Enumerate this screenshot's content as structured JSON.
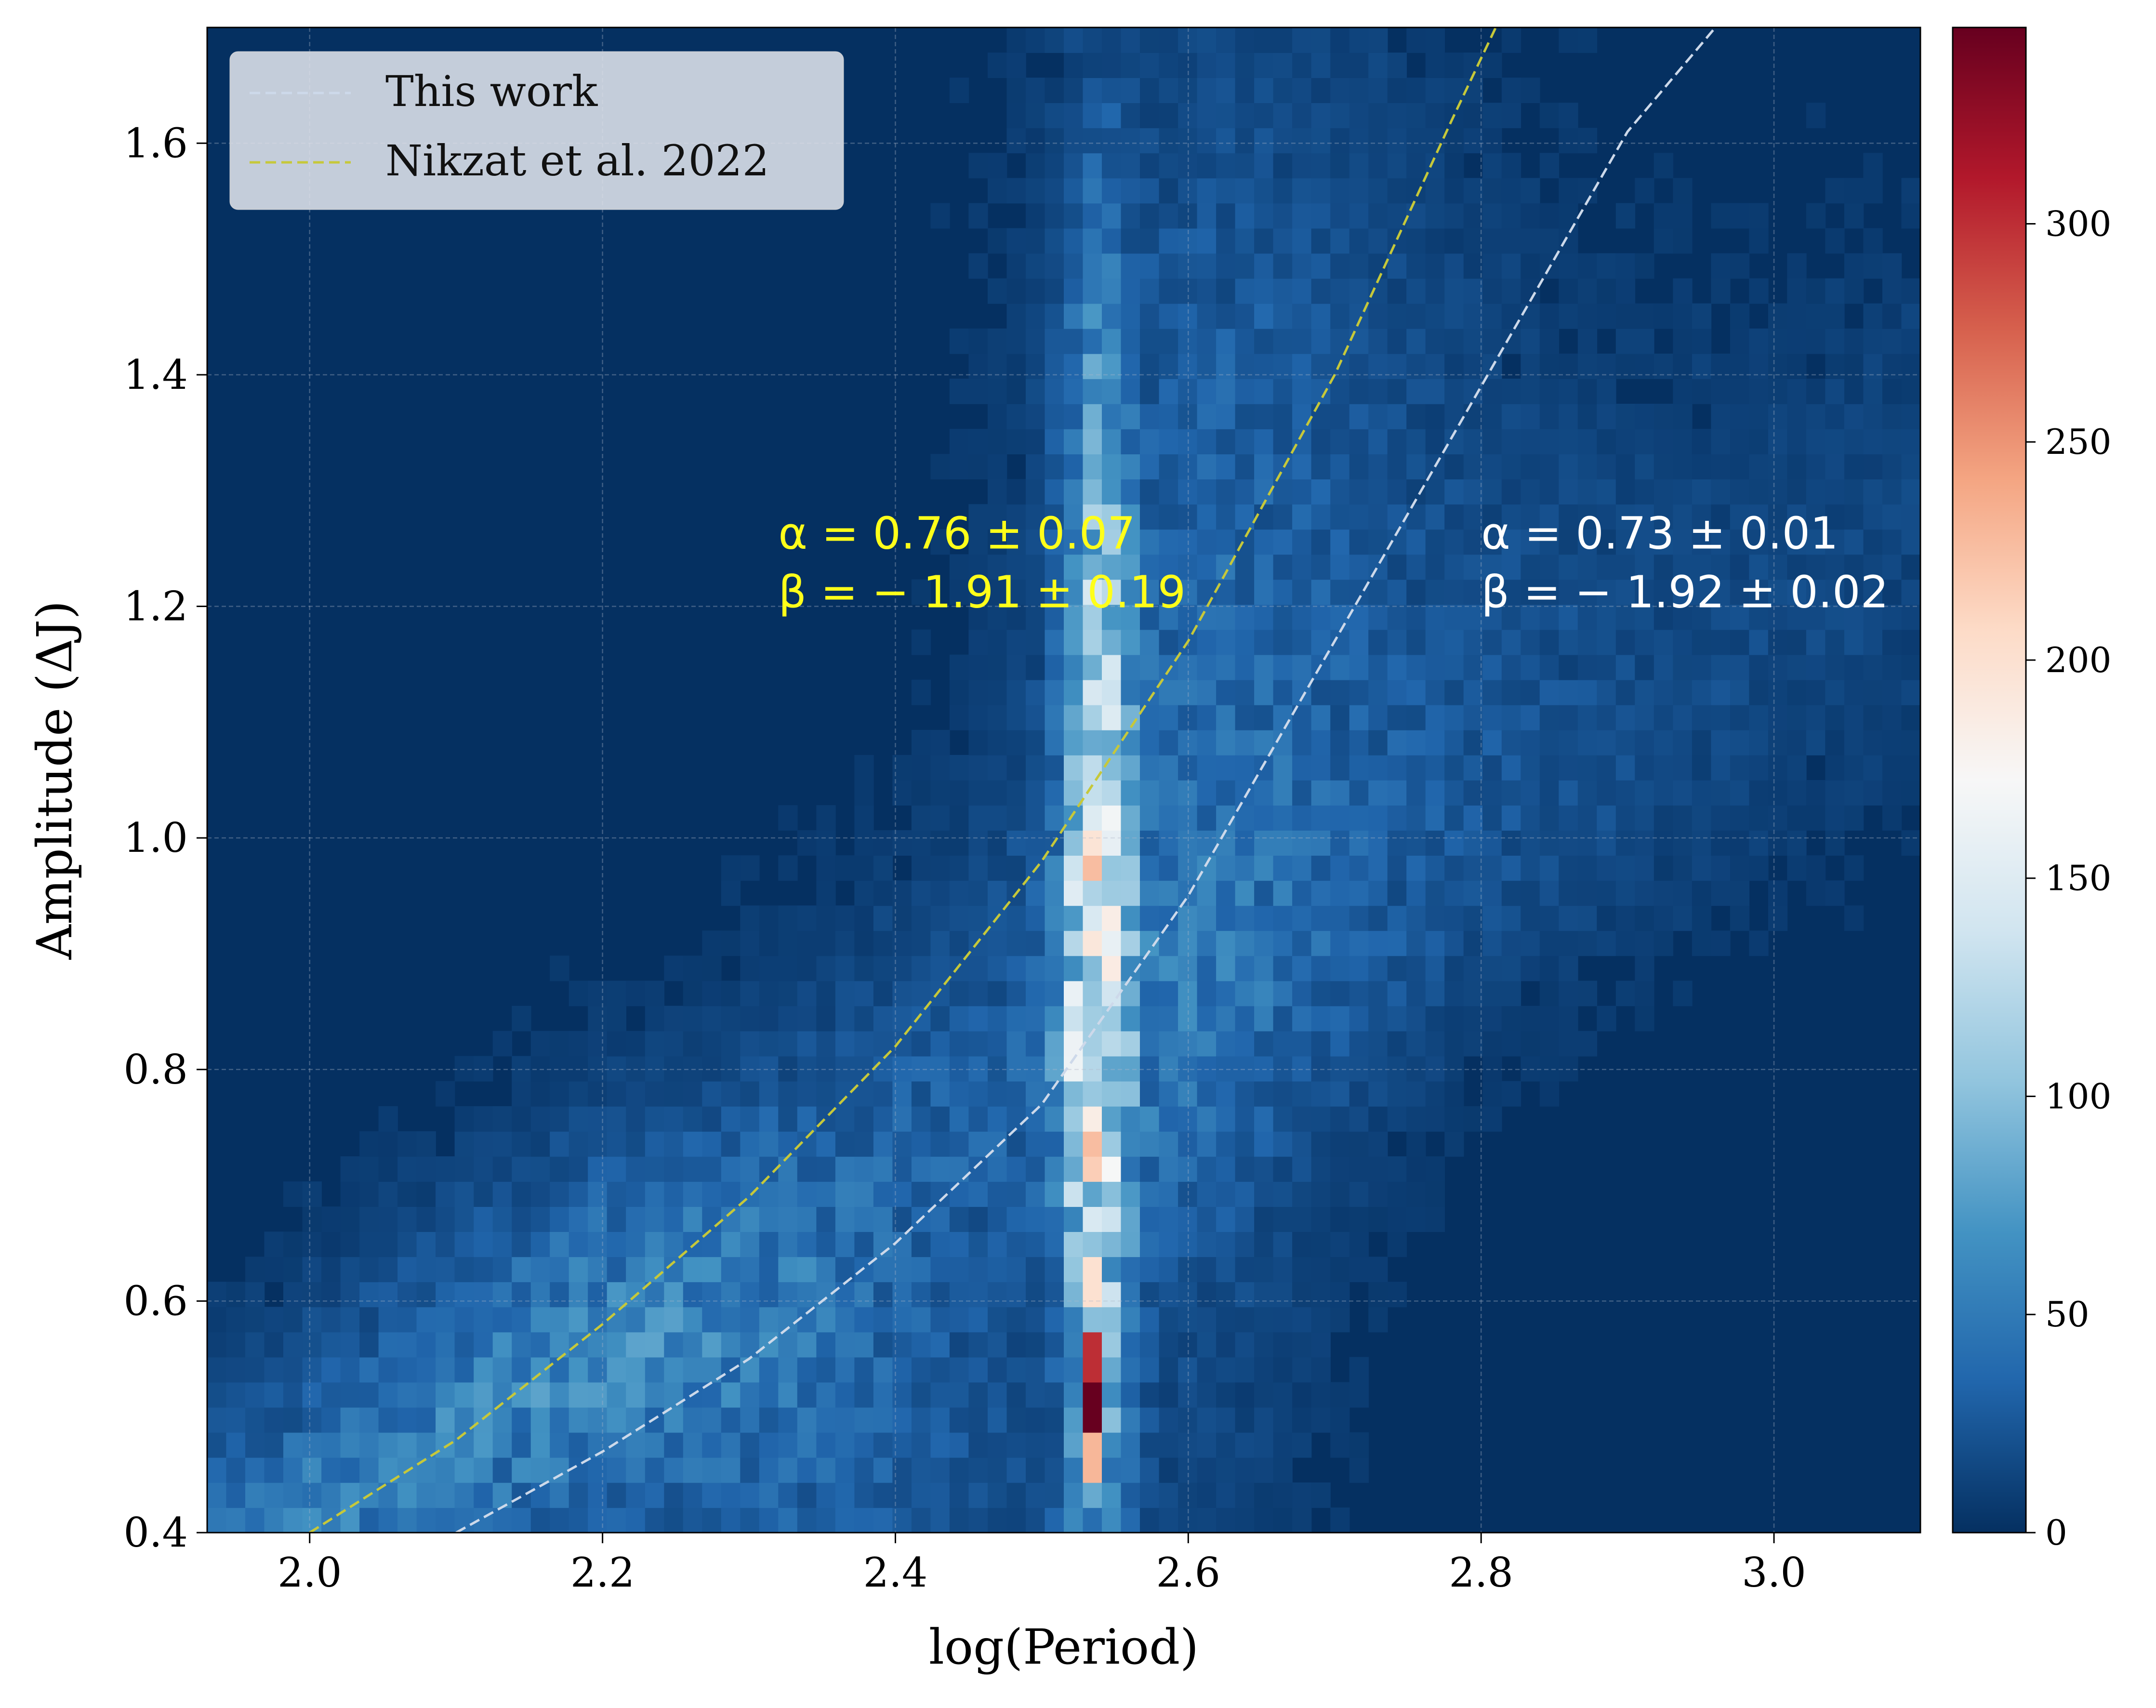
{
  "chart_data": {
    "type": "heatmap",
    "xlabel": "log(Period)",
    "ylabel": "Amplitude (ΔJ)",
    "xlim": [
      1.93,
      3.1
    ],
    "ylim": [
      0.4,
      1.7
    ],
    "x_ticks": [
      2.0,
      2.2,
      2.4,
      2.6,
      2.8,
      3.0
    ],
    "x_tick_labels": [
      "2.0",
      "2.2",
      "2.4",
      "2.6",
      "2.8",
      "3.0"
    ],
    "y_ticks": [
      0.4,
      0.6,
      0.8,
      1.0,
      1.2,
      1.4,
      1.6
    ],
    "y_tick_labels": [
      "0.4",
      "0.6",
      "0.8",
      "1.0",
      "1.2",
      "1.4",
      "1.6"
    ],
    "grid": true,
    "legend_position": "top-left",
    "colormap": "RdBu_r",
    "colorbar": {
      "range": [
        0,
        345
      ],
      "ticks": [
        0,
        50,
        100,
        150,
        200,
        250,
        300
      ],
      "tick_labels": [
        "0",
        "50",
        "100",
        "150",
        "200",
        "250",
        "300"
      ]
    },
    "density_peaks": [
      {
        "x": 2.53,
        "y": 0.5,
        "count": 345
      },
      {
        "x": 2.53,
        "y": 0.55,
        "count": 300
      },
      {
        "x": 2.53,
        "y": 0.46,
        "count": 230
      },
      {
        "x": 2.53,
        "y": 0.61,
        "count": 200
      },
      {
        "x": 2.545,
        "y": 0.9,
        "count": 150
      }
    ],
    "series": [
      {
        "name": "This work",
        "style": "dashed",
        "color": "#cdd9ea",
        "alpha": 0.73,
        "beta": -1.92,
        "points": [
          [
            2.1,
            0.4
          ],
          [
            2.2,
            0.47
          ],
          [
            2.3,
            0.55
          ],
          [
            2.4,
            0.65
          ],
          [
            2.5,
            0.77
          ],
          [
            2.6,
            0.95
          ],
          [
            2.7,
            1.17
          ],
          [
            2.8,
            1.39
          ],
          [
            2.9,
            1.61
          ],
          [
            2.96,
            1.7
          ]
        ]
      },
      {
        "name": "Nikzat et al. 2022",
        "style": "dashed",
        "color": "#c6c83a",
        "alpha": 0.76,
        "beta": -1.91,
        "points": [
          [
            2.0,
            0.4
          ],
          [
            2.1,
            0.48
          ],
          [
            2.2,
            0.58
          ],
          [
            2.3,
            0.69
          ],
          [
            2.4,
            0.82
          ],
          [
            2.5,
            0.98
          ],
          [
            2.6,
            1.17
          ],
          [
            2.7,
            1.4
          ],
          [
            2.78,
            1.62
          ],
          [
            2.81,
            1.7
          ]
        ]
      }
    ],
    "annotations": [
      {
        "line1": "α = 0.76 ± 0.07",
        "line2": "β = − 1.91 ± 0.19",
        "x": 2.32,
        "y": 1.25,
        "color": "#ffff1a"
      },
      {
        "line1": "α = 0.73 ± 0.01",
        "line2": "β = − 1.92 ± 0.02",
        "x": 2.8,
        "y": 1.25,
        "color": "#ffffff"
      }
    ]
  }
}
